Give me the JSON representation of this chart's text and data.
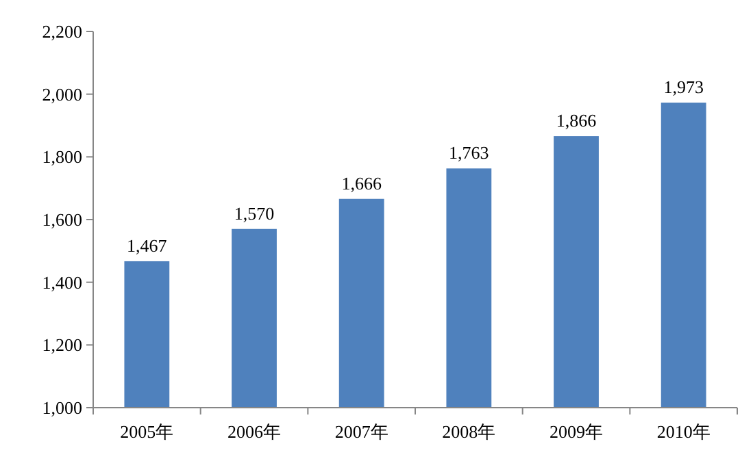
{
  "chart_data": {
    "type": "bar",
    "categories": [
      "2005年",
      "2006年",
      "2007年",
      "2008年",
      "2009年",
      "2010年"
    ],
    "values": [
      1467,
      1570,
      1666,
      1763,
      1866,
      1973
    ],
    "color": "#4f81bd",
    "ylim": [
      1000,
      2200
    ],
    "yticks": [
      {
        "value": 1000,
        "label": "1,000"
      },
      {
        "value": 1200,
        "label": "1,200"
      },
      {
        "value": 1400,
        "label": "1,400"
      },
      {
        "value": 1600,
        "label": "1,600"
      },
      {
        "value": 1800,
        "label": "1,800"
      },
      {
        "value": 2000,
        "label": "2,000"
      },
      {
        "value": 2200,
        "label": "2,200"
      }
    ],
    "value_labels": [
      "1,467",
      "1,570",
      "1,666",
      "1,763",
      "1,866",
      "1,973"
    ],
    "grid": false,
    "legend": false
  }
}
